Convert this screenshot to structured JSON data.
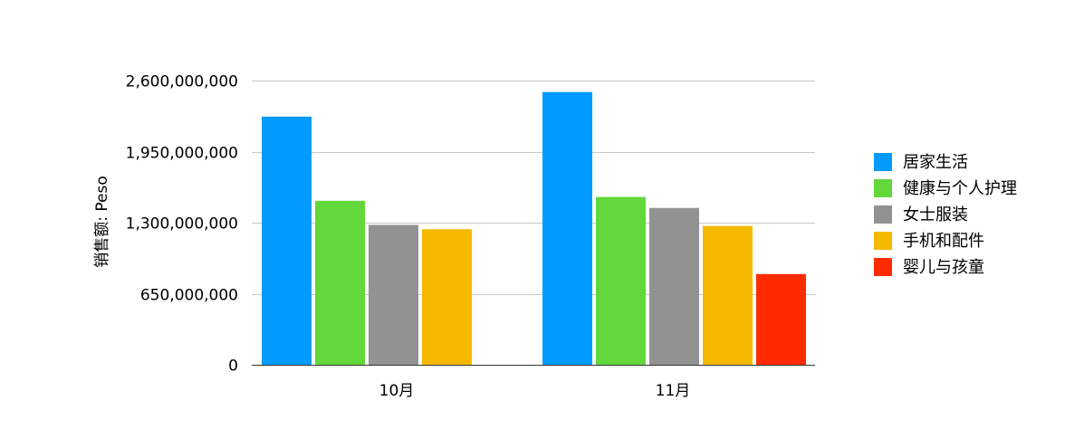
{
  "chart_data": {
    "type": "bar",
    "title": "",
    "xlabel": "",
    "ylabel": "销售额: Peso",
    "categories": [
      "10月",
      "11月"
    ],
    "ylim": [
      0,
      2600000000
    ],
    "yticks": [
      0,
      650000000,
      1300000000,
      1950000000,
      2600000000
    ],
    "ytick_labels": [
      "0",
      "650,000,000",
      "1,300,000,000",
      "1,950,000,000",
      "2,600,000,000"
    ],
    "grid": true,
    "legend_position": "right",
    "series": [
      {
        "name": "居家生活",
        "color": "#039BFF",
        "values": [
          2270000000,
          2495000000
        ]
      },
      {
        "name": "健康与个人护理",
        "color": "#62D83B",
        "values": [
          1500000000,
          1535000000
        ]
      },
      {
        "name": "女士服装",
        "color": "#929292",
        "values": [
          1280000000,
          1435000000
        ]
      },
      {
        "name": "手机和配件",
        "color": "#F6B900",
        "values": [
          1240000000,
          1270000000
        ]
      },
      {
        "name": "婴儿与孩童",
        "color": "#FF2A00",
        "values": [
          null,
          830000000
        ]
      }
    ]
  }
}
